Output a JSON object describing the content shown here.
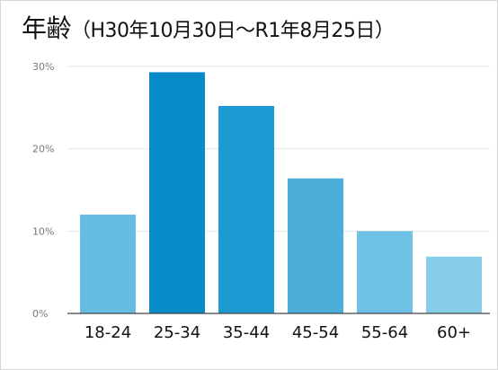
{
  "title": {
    "main": "年齢",
    "sub": "（H30年10月30日～R1年8月25日）"
  },
  "chart_data": {
    "type": "bar",
    "categories": [
      "18-24",
      "25-34",
      "35-44",
      "45-54",
      "55-64",
      "60+"
    ],
    "values": [
      12.0,
      29.3,
      25.2,
      16.4,
      10.0,
      6.9
    ],
    "yticks": [
      {
        "value": 0,
        "label": "0%"
      },
      {
        "value": 10,
        "label": "10%"
      },
      {
        "value": 20,
        "label": "20%"
      },
      {
        "value": 30,
        "label": "30%"
      }
    ],
    "ylim": [
      0,
      30
    ],
    "grid": true,
    "colors": [
      "#66bce2",
      "#0a8bc9",
      "#1e9ad3",
      "#4aaed9",
      "#70c1e6",
      "#86cdea"
    ],
    "grid_color": "#e6e6e6",
    "axis_color": "#444444"
  }
}
